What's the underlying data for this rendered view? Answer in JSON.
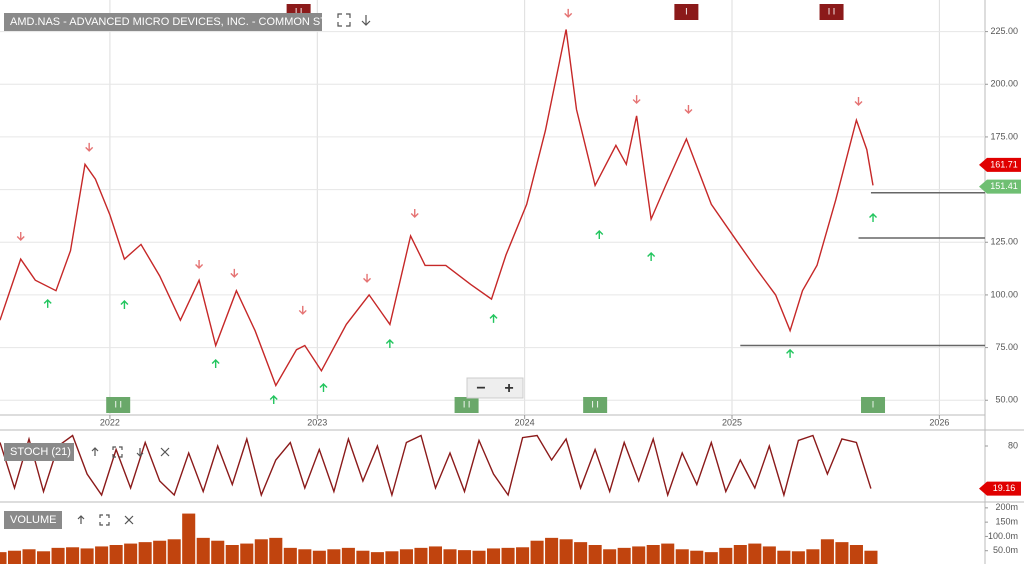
{
  "controls": {
    "zoom_out": "−",
    "zoom_in": "+"
  },
  "chart_data": [
    {
      "type": "line",
      "title": "AMD.NAS - ADVANCED MICRO DEVICES, INC. - COMMON STOCK",
      "color": "#c62828",
      "grid": true,
      "xlim": [
        2021.47,
        2026.22
      ],
      "xticks": [
        2022,
        2023,
        2024,
        2025,
        2026
      ],
      "ylim": [
        43,
        240
      ],
      "yticks": [
        {
          "value": 50,
          "label": "50.00"
        },
        {
          "value": 75,
          "label": "75.00"
        },
        {
          "value": 100,
          "label": "100.00"
        },
        {
          "value": 125,
          "label": "125.00"
        },
        {
          "value": 150,
          "label": "150.00"
        },
        {
          "value": 175,
          "label": "175.00"
        },
        {
          "value": 200,
          "label": "200.00"
        },
        {
          "value": 225,
          "label": "225.00"
        }
      ],
      "x": [
        2021.47,
        2021.57,
        2021.64,
        2021.74,
        2021.81,
        2021.88,
        2021.93,
        2022.0,
        2022.07,
        2022.15,
        2022.24,
        2022.34,
        2022.43,
        2022.51,
        2022.61,
        2022.7,
        2022.8,
        2022.9,
        2022.94,
        2023.02,
        2023.14,
        2023.25,
        2023.35,
        2023.45,
        2023.52,
        2023.62,
        2023.74,
        2023.84,
        2023.91,
        2024.01,
        2024.1,
        2024.2,
        2024.25,
        2024.34,
        2024.44,
        2024.49,
        2024.54,
        2024.61,
        2024.68,
        2024.78,
        2024.9,
        2025.02,
        2025.12,
        2025.21,
        2025.28,
        2025.34,
        2025.41,
        2025.5,
        2025.6,
        2025.65,
        2025.68
      ],
      "values": [
        88,
        117,
        107,
        102,
        121,
        162,
        155,
        138,
        117,
        124,
        109,
        88,
        107,
        76,
        102,
        83,
        57,
        74,
        76,
        64,
        86,
        100,
        86,
        128,
        114,
        114,
        105,
        98,
        119,
        143,
        178,
        226,
        188,
        152,
        171,
        162,
        185,
        136,
        152,
        174,
        143,
        126,
        112,
        100,
        83,
        102,
        114,
        145,
        183,
        169,
        152
      ],
      "tags": [
        {
          "value": 161.71,
          "color": "#e00000"
        },
        {
          "value": 151.41,
          "color": "#6fbf73"
        }
      ],
      "levels": [
        {
          "value": 148.5,
          "start": 2025.67
        },
        {
          "value": 127,
          "start": 2025.61
        },
        {
          "value": 76,
          "start": 2025.04
        }
      ],
      "signals_down": {
        "color": "#e57373",
        "x": [
          2021.57,
          2021.9,
          2022.43,
          2022.6,
          2022.93,
          2023.24,
          2023.47,
          2024.21,
          2024.54,
          2024.79,
          2025.61
        ],
        "y": [
          127.5,
          169.8,
          114.2,
          110.0,
          92.4,
          107.6,
          138.4,
          233.4,
          192.5,
          187.8,
          191.6
        ]
      },
      "signals_up": {
        "color": "#22c55e",
        "x": [
          2021.7,
          2022.07,
          2022.51,
          2022.79,
          2023.03,
          2023.35,
          2023.85,
          2024.36,
          2024.61,
          2025.28,
          2025.68
        ],
        "y": [
          96.2,
          95.7,
          67.7,
          50.6,
          56.3,
          77.2,
          89.1,
          128.9,
          118.5,
          72.5,
          137.0
        ]
      },
      "events_top": {
        "color": "#8b1a1a",
        "x": [
          2022.91,
          2024.78,
          2025.48
        ],
        "labels": [
          "I I",
          "I",
          "I I"
        ]
      },
      "events_bottom": {
        "color": "#6aa86a",
        "x": [
          2022.04,
          2023.72,
          2024.34,
          2025.68
        ],
        "labels": [
          "I I",
          "I I",
          "I I",
          "I"
        ]
      }
    },
    {
      "type": "line",
      "title": "STOCH (21)",
      "color": "#8b1a1a",
      "tag_color": "#e00000",
      "xlim": [
        2021.47,
        2026.22
      ],
      "ylim": [
        0,
        100
      ],
      "yticks": [
        80
      ],
      "x": [
        2021.47,
        2021.54,
        2021.61,
        2021.68,
        2021.75,
        2021.82,
        2021.89,
        2021.96,
        2022.03,
        2022.1,
        2022.17,
        2022.24,
        2022.31,
        2022.38,
        2022.45,
        2022.52,
        2022.59,
        2022.66,
        2022.73,
        2022.8,
        2022.87,
        2022.94,
        2023.01,
        2023.08,
        2023.15,
        2023.22,
        2023.29,
        2023.36,
        2023.43,
        2023.5,
        2023.57,
        2023.64,
        2023.71,
        2023.78,
        2023.85,
        2023.92,
        2023.99,
        2024.06,
        2024.13,
        2024.2,
        2024.27,
        2024.34,
        2024.41,
        2024.48,
        2024.55,
        2024.62,
        2024.69,
        2024.76,
        2024.83,
        2024.9,
        2024.97,
        2025.04,
        2025.11,
        2025.18,
        2025.25,
        2025.32,
        2025.39,
        2025.46,
        2025.53,
        2025.6,
        2025.67
      ],
      "values": [
        85,
        20,
        90,
        15,
        80,
        95,
        40,
        10,
        75,
        20,
        85,
        30,
        10,
        70,
        15,
        80,
        25,
        90,
        10,
        60,
        85,
        20,
        75,
        15,
        90,
        30,
        80,
        10,
        85,
        95,
        20,
        70,
        15,
        88,
        40,
        10,
        92,
        95,
        60,
        90,
        20,
        75,
        15,
        85,
        30,
        90,
        10,
        70,
        25,
        85,
        15,
        60,
        20,
        80,
        10,
        88,
        95,
        40,
        90,
        85,
        19.16
      ]
    },
    {
      "type": "bar",
      "title": "VOLUME",
      "color": "#c1440e",
      "xlim": [
        2021.47,
        2026.22
      ],
      "ylim": [
        0,
        210000000
      ],
      "yticks": [
        {
          "value": 50000000,
          "label": "50.0m"
        },
        {
          "value": 100000000,
          "label": "100.0m"
        },
        {
          "value": 150000000,
          "label": "150m"
        },
        {
          "value": 200000000,
          "label": "200m"
        }
      ],
      "x": [
        2021.47,
        2021.54,
        2021.61,
        2021.68,
        2021.75,
        2021.82,
        2021.89,
        2021.96,
        2022.03,
        2022.1,
        2022.17,
        2022.24,
        2022.31,
        2022.38,
        2022.45,
        2022.52,
        2022.59,
        2022.66,
        2022.73,
        2022.8,
        2022.87,
        2022.94,
        2023.01,
        2023.08,
        2023.15,
        2023.22,
        2023.29,
        2023.36,
        2023.43,
        2023.5,
        2023.57,
        2023.64,
        2023.71,
        2023.78,
        2023.85,
        2023.92,
        2023.99,
        2024.06,
        2024.13,
        2024.2,
        2024.27,
        2024.34,
        2024.41,
        2024.48,
        2024.55,
        2024.62,
        2024.69,
        2024.76,
        2024.83,
        2024.9,
        2024.97,
        2025.04,
        2025.11,
        2025.18,
        2025.25,
        2025.32,
        2025.39,
        2025.46,
        2025.53,
        2025.6,
        2025.67
      ],
      "values": [
        45000000,
        50000000,
        55000000,
        48000000,
        60000000,
        62000000,
        58000000,
        65000000,
        70000000,
        75000000,
        80000000,
        85000000,
        90000000,
        180000000,
        95000000,
        85000000,
        70000000,
        75000000,
        90000000,
        95000000,
        60000000,
        55000000,
        50000000,
        55000000,
        60000000,
        50000000,
        45000000,
        48000000,
        55000000,
        60000000,
        65000000,
        55000000,
        52000000,
        50000000,
        58000000,
        60000000,
        62000000,
        85000000,
        95000000,
        90000000,
        80000000,
        70000000,
        55000000,
        60000000,
        65000000,
        70000000,
        75000000,
        55000000,
        50000000,
        45000000,
        60000000,
        70000000,
        75000000,
        65000000,
        50000000,
        48000000,
        55000000,
        90000000,
        80000000,
        70000000,
        50000000
      ]
    }
  ]
}
